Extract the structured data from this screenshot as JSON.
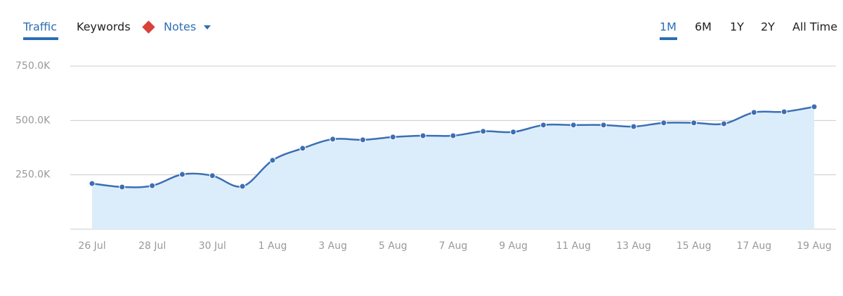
{
  "tabs": [
    "Traffic",
    "Keywords",
    "Notes"
  ],
  "ranges": [
    "1M",
    "6M",
    "1Y",
    "2Y",
    "All Time"
  ],
  "chart_data": {
    "type": "area",
    "categories": [
      "26 Jul",
      null,
      "28 Jul",
      null,
      "30 Jul",
      null,
      "1 Aug",
      null,
      "3 Aug",
      null,
      "5 Aug",
      null,
      "7 Aug",
      null,
      "9 Aug",
      null,
      "11 Aug",
      null,
      "13 Aug",
      null,
      "15 Aug",
      null,
      "17 Aug",
      null,
      "19 Aug"
    ],
    "series": [
      {
        "name": "Traffic",
        "color": "#3c6eb4",
        "values": [
          210000,
          194000,
          200000,
          252000,
          246000,
          197000,
          317000,
          372000,
          414000,
          411000,
          424000,
          430000,
          430000,
          450000,
          447000,
          479000,
          479000,
          479000,
          472000,
          489000,
          489000,
          485000,
          537000,
          540000,
          563000
        ]
      }
    ],
    "area_color": "#dbedfb",
    "ylim": [
      0,
      750000
    ],
    "yticks": [
      {
        "value": 250000,
        "label": "250.0K"
      },
      {
        "value": 500000,
        "label": "500.0K"
      },
      {
        "value": 750000,
        "label": "750.0K"
      }
    ],
    "grid": true
  }
}
